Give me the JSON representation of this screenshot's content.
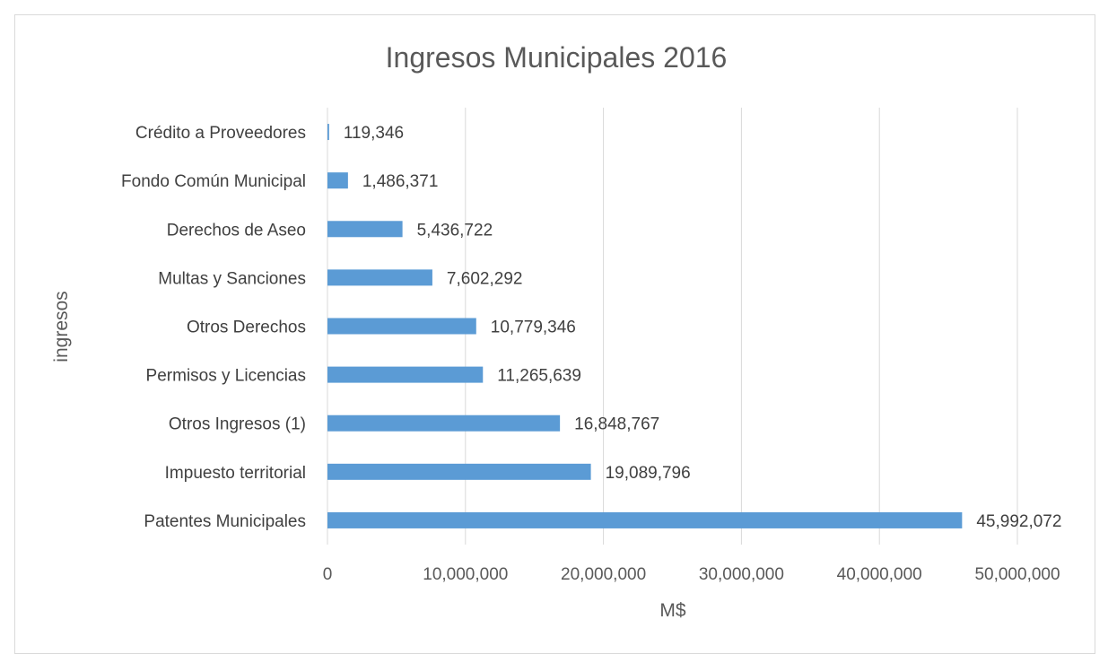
{
  "chart_data": {
    "type": "bar",
    "orientation": "horizontal",
    "title": "Ingresos Municipales 2016",
    "xlabel": "M$",
    "ylabel": "ingresos",
    "categories": [
      "Patentes Municipales",
      "Impuesto territorial",
      "Otros Ingresos (1)",
      "Permisos y Licencias",
      "Otros Derechos",
      "Multas y Sanciones",
      "Derechos de Aseo",
      "Fondo Común Municipal",
      "Crédito a Proveedores"
    ],
    "values": [
      45992072,
      19089796,
      16848767,
      11265639,
      10779346,
      7602292,
      5436722,
      1486371,
      119346
    ],
    "data_labels": [
      "45,992,072",
      "19,089,796",
      "16,848,767",
      "11,265,639",
      "10,779,346",
      "7,602,292",
      "5,436,722",
      "1,486,371",
      "119,346"
    ],
    "xlim": [
      0,
      50000000
    ],
    "x_ticks": [
      0,
      10000000,
      20000000,
      30000000,
      40000000,
      50000000
    ],
    "x_tick_labels": [
      "0",
      "10,000,000",
      "20,000,000",
      "30,000,000",
      "40,000,000",
      "50,000,000"
    ],
    "grid": true,
    "legend": "none",
    "bar_color": "#5b9bd5"
  }
}
